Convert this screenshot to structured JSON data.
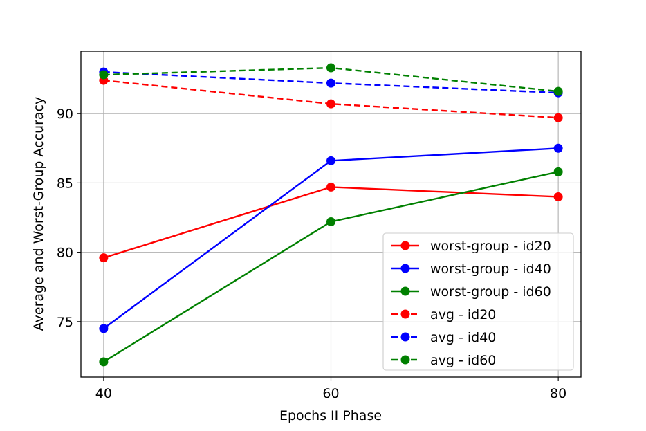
{
  "chart_data": {
    "type": "line",
    "title": "",
    "xlabel": "Epochs II Phase",
    "ylabel": "Average and Worst-Group Accuracy",
    "x": [
      40,
      60,
      80
    ],
    "xticks": [
      40,
      60,
      80
    ],
    "yticks": [
      75,
      80,
      85,
      90
    ],
    "xlim": [
      38,
      82
    ],
    "ylim": [
      71,
      94.5
    ],
    "grid": true,
    "legend_position": "lower-right",
    "series": [
      {
        "name": "worst-group - id20",
        "color": "#ff0000",
        "dashed": false,
        "values": [
          79.6,
          84.7,
          84.0
        ]
      },
      {
        "name": "worst-group - id40",
        "color": "#0000ff",
        "dashed": false,
        "values": [
          74.5,
          86.6,
          87.5
        ]
      },
      {
        "name": "worst-group - id60",
        "color": "#008000",
        "dashed": false,
        "values": [
          72.1,
          82.2,
          85.8
        ]
      },
      {
        "name": "avg - id20",
        "color": "#ff0000",
        "dashed": true,
        "values": [
          92.4,
          90.7,
          89.7
        ]
      },
      {
        "name": "avg - id40",
        "color": "#0000ff",
        "dashed": true,
        "values": [
          93.0,
          92.2,
          91.5
        ]
      },
      {
        "name": "avg - id60",
        "color": "#008000",
        "dashed": true,
        "values": [
          92.8,
          93.3,
          91.6
        ]
      }
    ]
  }
}
